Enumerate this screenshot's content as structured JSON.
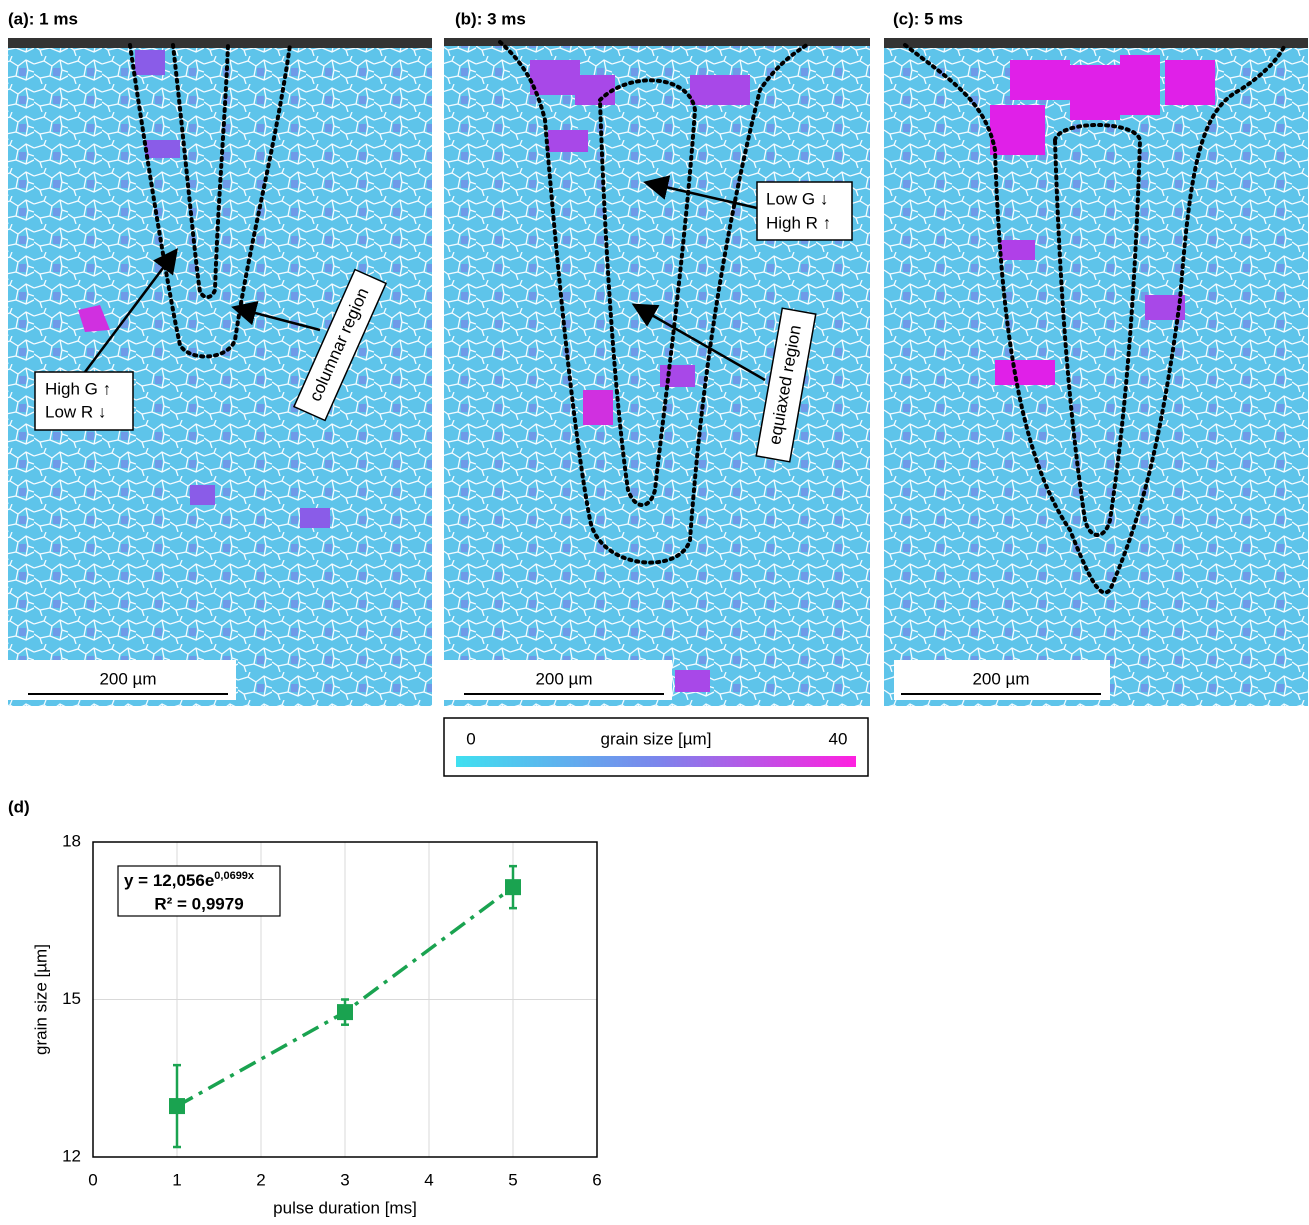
{
  "panels": [
    {
      "label": "(a): 1 ms",
      "scale_bar": "200 µm",
      "annotations": [
        "High G ↑",
        "Low R ↓",
        "columnar region"
      ]
    },
    {
      "label": "(b): 3 ms",
      "scale_bar": "200 µm",
      "annotations": [
        "Low G ↓",
        "High R ↑",
        "equiaxed region"
      ]
    },
    {
      "label": "(c): 5 ms",
      "scale_bar": "200 µm"
    }
  ],
  "colorbar": {
    "min": 0,
    "label": "grain size [µm]",
    "max": 40
  },
  "chart_data": {
    "type": "scatter",
    "title": "(d)",
    "x": [
      1,
      3,
      5
    ],
    "values": [
      12.97,
      14.76,
      17.14
    ],
    "errors": [
      0.78,
      0.24,
      0.4
    ],
    "color": "#1aa350",
    "xlabel": "pulse duration [ms]",
    "ylabel": "grain size [µm]",
    "equation": "y = 12,056e",
    "equation_exponent": "0,0699x",
    "r_squared": "R² = 0,9979",
    "xlim": [
      0,
      6
    ],
    "xticks": [
      0,
      1,
      2,
      3,
      4,
      5,
      6
    ],
    "ylim": [
      12,
      18
    ],
    "yticks": [
      12,
      15,
      18
    ],
    "grid": true
  }
}
